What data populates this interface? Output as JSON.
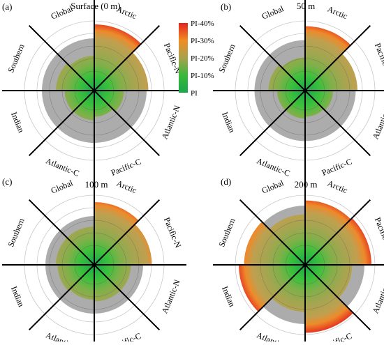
{
  "chart_data": {
    "type": "polar-sector",
    "scale": {
      "labels": [
        "PI-40%",
        "PI-30%",
        "PI-20%",
        "PI-10%",
        "PI"
      ],
      "values": [
        40,
        30,
        20,
        10,
        0
      ],
      "colors": [
        "#e4231e",
        "#f08c22",
        "#a8a24e",
        "#3ab83a",
        "#1aa84a"
      ]
    },
    "sectors": [
      "Arctic",
      "Pacific-N",
      "Atlantic-N",
      "Pacific-C",
      "Atlantic-C",
      "Indian",
      "Southern",
      "Global"
    ],
    "reference_range": [
      0,
      40
    ],
    "panels": [
      {
        "letter": "(a)",
        "title": "Surface (0 m)",
        "values": [
          38,
          31,
          17,
          15,
          17,
          17,
          22,
          20
        ],
        "envelope": 26
      },
      {
        "letter": "(b)",
        "title": "50 m",
        "values": [
          37,
          30,
          16,
          15,
          16,
          16,
          21,
          19
        ],
        "envelope": 25
      },
      {
        "letter": "(c)",
        "title": "100 m",
        "values": [
          36,
          33,
          21,
          21,
          20,
          21,
          22,
          22
        ],
        "envelope": 24
      },
      {
        "letter": "(d)",
        "title": "200 m",
        "values": [
          37,
          38,
          27,
          39,
          27,
          38,
          35,
          29
        ],
        "envelope": 30
      }
    ]
  }
}
